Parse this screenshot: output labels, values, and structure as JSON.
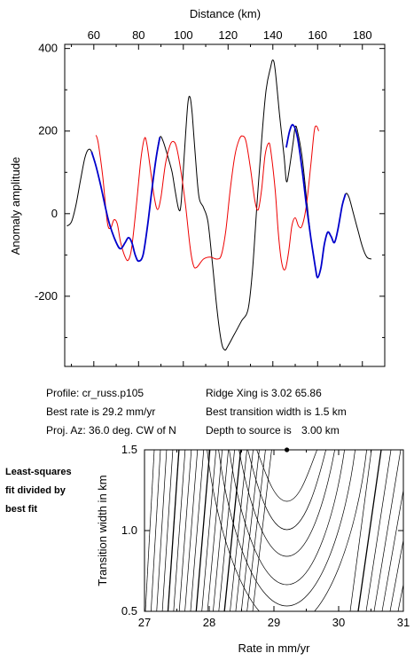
{
  "chart_data": [
    {
      "type": "line",
      "xlabel": "Distance (km)",
      "ylabel": "Anomaly amplitude",
      "xlim": [
        47,
        190
      ],
      "ylim": [
        -370,
        410
      ],
      "x_ticks": [
        60,
        80,
        100,
        120,
        140,
        160,
        180
      ],
      "y_ticks": [
        -200,
        0,
        200,
        400
      ],
      "x_tick_labels": [
        "60",
        "80",
        "100",
        "120",
        "140",
        "160",
        "180"
      ],
      "y_tick_labels": [
        "-200",
        "0",
        "200",
        "400"
      ],
      "series": [
        {
          "color": "#000000",
          "points": [
            [
              48,
              -30
            ],
            [
              50,
              -20
            ],
            [
              52,
              20
            ],
            [
              54,
              80
            ],
            [
              56,
              135
            ],
            [
              57.5,
              155
            ],
            [
              59,
              150
            ],
            [
              61,
              115
            ],
            [
              63,
              70
            ],
            [
              65,
              20
            ],
            [
              67,
              -25
            ],
            [
              70,
              -70
            ],
            [
              72,
              -85
            ],
            [
              74,
              -70
            ],
            [
              75.5,
              -58
            ],
            [
              77,
              -70
            ],
            [
              78.5,
              -100
            ],
            [
              80,
              -115
            ],
            [
              82,
              -100
            ],
            [
              84,
              -30
            ],
            [
              86,
              60
            ],
            [
              88,
              140
            ],
            [
              89.5,
              185
            ],
            [
              91,
              175
            ],
            [
              93,
              140
            ],
            [
              95,
              100
            ],
            [
              96.5,
              50
            ],
            [
              98,
              10
            ],
            [
              99,
              25
            ],
            [
              100.5,
              150
            ],
            [
              102,
              265
            ],
            [
              103,
              282
            ],
            [
              104,
              240
            ],
            [
              105.5,
              130
            ],
            [
              107,
              40
            ],
            [
              109,
              15
            ],
            [
              111,
              -20
            ],
            [
              113,
              -120
            ],
            [
              115,
              -230
            ],
            [
              117,
              -310
            ],
            [
              118.5,
              -330
            ],
            [
              120,
              -320
            ],
            [
              123,
              -290
            ],
            [
              126,
              -260
            ],
            [
              129,
              -230
            ],
            [
              131,
              -130
            ],
            [
              133,
              30
            ],
            [
              135,
              180
            ],
            [
              137,
              300
            ],
            [
              139,
              355
            ],
            [
              140,
              372
            ],
            [
              141,
              350
            ],
            [
              143,
              240
            ],
            [
              145,
              140
            ],
            [
              146,
              80
            ],
            [
              147,
              95
            ],
            [
              149,
              170
            ],
            [
              150,
              210
            ],
            [
              151,
              200
            ],
            [
              153,
              140
            ],
            [
              155,
              40
            ],
            [
              157,
              -60
            ],
            [
              159,
              -130
            ],
            [
              160,
              -155
            ],
            [
              161.5,
              -130
            ],
            [
              163,
              -75
            ],
            [
              164.5,
              -45
            ],
            [
              166,
              -55
            ],
            [
              167.5,
              -70
            ],
            [
              169,
              -40
            ],
            [
              171,
              20
            ],
            [
              172.5,
              48
            ],
            [
              174,
              40
            ],
            [
              176,
              0
            ],
            [
              178,
              -40
            ],
            [
              180,
              -80
            ],
            [
              182,
              -105
            ],
            [
              184,
              -110
            ]
          ]
        },
        {
          "color": "#0000cc",
          "points": [
            [
              59,
              150
            ],
            [
              61,
              115
            ],
            [
              63,
              70
            ],
            [
              65,
              20
            ],
            [
              67,
              -25
            ],
            [
              70,
              -70
            ],
            [
              72,
              -85
            ],
            [
              74,
              -70
            ],
            [
              75.5,
              -58
            ],
            [
              77,
              -70
            ],
            [
              78.5,
              -100
            ],
            [
              80,
              -115
            ],
            [
              82,
              -100
            ],
            [
              84,
              -30
            ],
            [
              86,
              60
            ],
            [
              88,
              140
            ],
            [
              89.5,
              185
            ]
          ]
        },
        {
          "color": "#0000cc",
          "points": [
            [
              146,
              160
            ],
            [
              147.5,
              200
            ],
            [
              149,
              215
            ],
            [
              151,
              185
            ],
            [
              153,
              110
            ],
            [
              155,
              20
            ],
            [
              157,
              -60
            ],
            [
              159,
              -130
            ],
            [
              160,
              -155
            ],
            [
              161.5,
              -130
            ],
            [
              163,
              -75
            ],
            [
              164.5,
              -45
            ],
            [
              166,
              -55
            ],
            [
              167.5,
              -70
            ],
            [
              169,
              -40
            ],
            [
              171,
              20
            ],
            [
              172.5,
              48
            ]
          ]
        },
        {
          "color": "#ee0000",
          "points": [
            [
              61,
              190
            ],
            [
              62,
              170
            ],
            [
              64,
              90
            ],
            [
              66,
              -20
            ],
            [
              67.5,
              -35
            ],
            [
              69,
              -15
            ],
            [
              70.5,
              -25
            ],
            [
              72,
              -70
            ],
            [
              74,
              -105
            ],
            [
              75.5,
              -112
            ],
            [
              77,
              -80
            ],
            [
              79,
              20
            ],
            [
              81,
              130
            ],
            [
              82.5,
              180
            ],
            [
              83.5,
              175
            ],
            [
              85,
              120
            ],
            [
              87,
              40
            ],
            [
              88.5,
              10
            ],
            [
              90,
              40
            ],
            [
              92,
              120
            ],
            [
              94,
              165
            ],
            [
              95.5,
              175
            ],
            [
              97,
              160
            ],
            [
              99,
              100
            ],
            [
              101,
              20
            ],
            [
              103,
              -80
            ],
            [
              104.5,
              -125
            ],
            [
              106,
              -130
            ],
            [
              109,
              -110
            ],
            [
              112,
              -105
            ],
            [
              115,
              -110
            ],
            [
              117,
              -100
            ],
            [
              119,
              -40
            ],
            [
              121,
              60
            ],
            [
              123,
              140
            ],
            [
              125,
              180
            ],
            [
              126.5,
              188
            ],
            [
              128,
              175
            ],
            [
              130,
              110
            ],
            [
              132,
              30
            ],
            [
              133.5,
              10
            ],
            [
              135,
              60
            ],
            [
              136.5,
              140
            ],
            [
              138,
              170
            ],
            [
              139,
              155
            ],
            [
              141,
              60
            ],
            [
              142.5,
              -50
            ],
            [
              144,
              -120
            ],
            [
              145.5,
              -135
            ],
            [
              147,
              -95
            ],
            [
              148.5,
              -30
            ],
            [
              150,
              -10
            ],
            [
              151.5,
              -30
            ],
            [
              153,
              -30
            ],
            [
              155,
              20
            ],
            [
              157,
              120
            ],
            [
              158.5,
              200
            ],
            [
              159.5,
              212
            ],
            [
              160.5,
              200
            ]
          ]
        }
      ],
      "info": {
        "profile": "Profile: cr_russ.p105",
        "best_rate": "Best rate is 29.2 mm/yr",
        "proj_az": "Proj. Az: 36.0 deg. CW of N",
        "ridge_xing": "Ridge Xing is 3.02 65.86",
        "best_transition": "Best transition width is 1.5 km",
        "depth_to_source": "Depth to source is",
        "depth_value": "3.00 km"
      }
    },
    {
      "type": "contour",
      "xlabel": "Rate in mm/yr",
      "ylabel": "Transition width in km",
      "xlim": [
        27,
        31
      ],
      "ylim": [
        0.5,
        1.5
      ],
      "x_ticks": [
        27,
        28,
        29,
        30,
        31
      ],
      "y_ticks": [
        0.5,
        1.0,
        1.5
      ],
      "x_tick_labels": [
        "27",
        "28",
        "29",
        "30",
        "31"
      ],
      "y_tick_labels": [
        "0.5",
        "1.0",
        "1.5"
      ],
      "best_fit": {
        "rate": 29.2,
        "width": 1.5
      },
      "note_lines": [
        "Least-squares",
        "fit divided by",
        "best fit"
      ]
    }
  ]
}
